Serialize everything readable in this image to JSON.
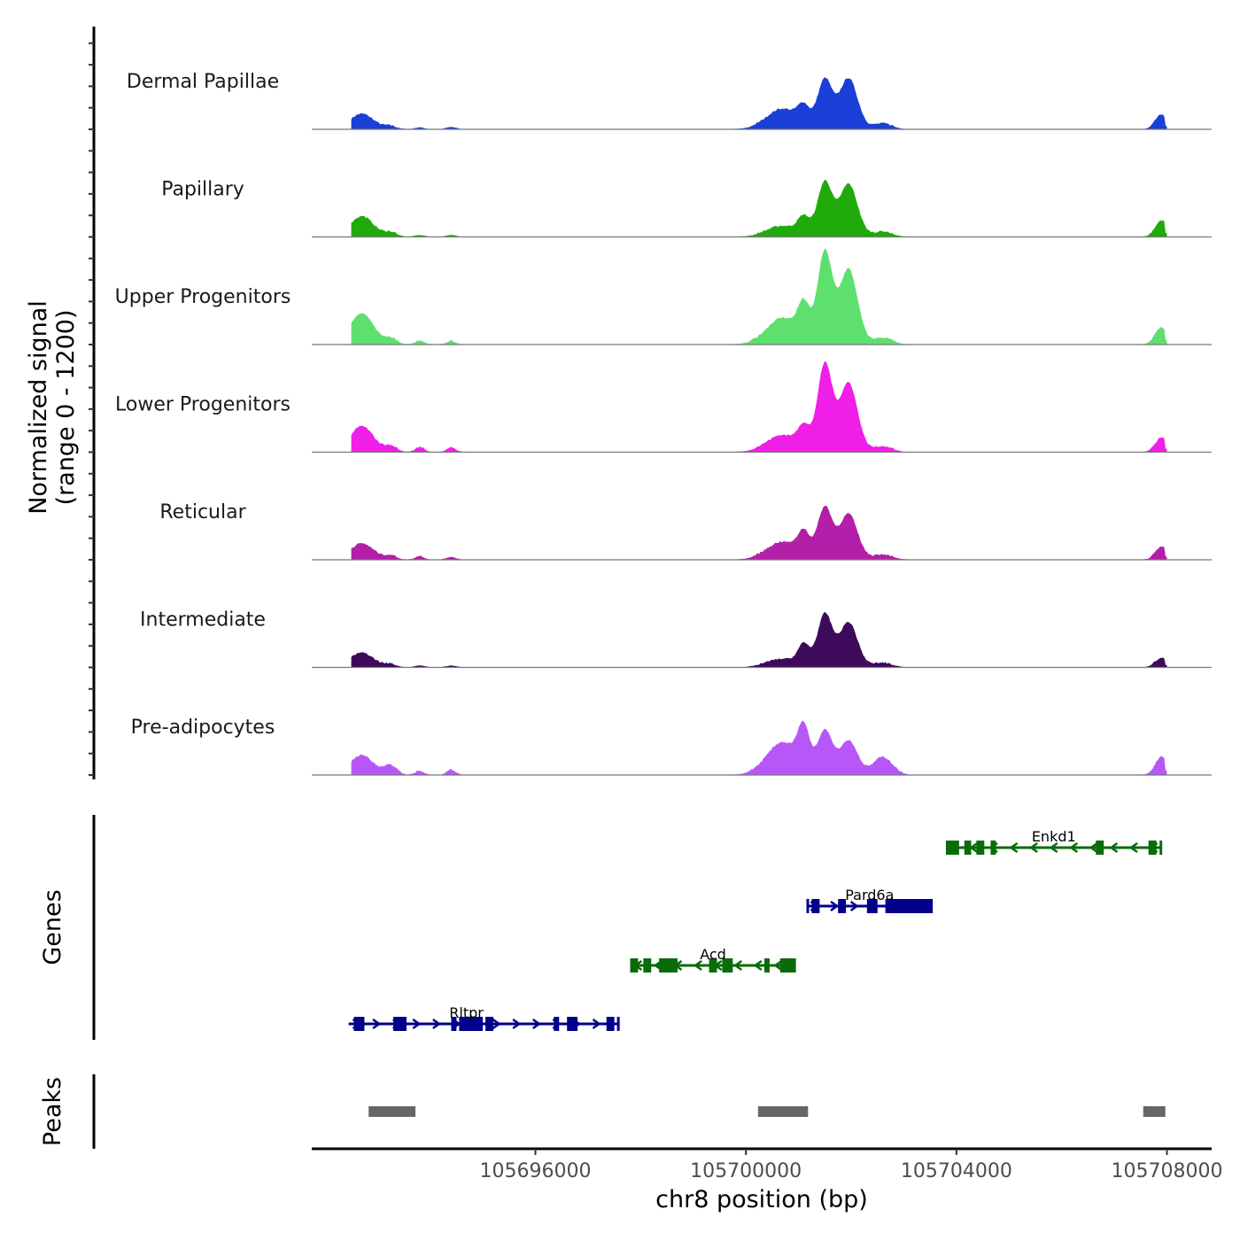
{
  "chart_data": {
    "type": "area",
    "title": "",
    "xlabel": "chr8 position (bp)",
    "ylabel_line1": "Normalized signal",
    "ylabel_line2": "(range 0 - 1200)",
    "ylim": [
      0,
      1200
    ],
    "xlim": [
      105691750,
      105708850
    ],
    "x_ticks": [
      105696000,
      105700000,
      105704000,
      105708000
    ],
    "x_tick_labels": [
      "105696000",
      "105700000",
      "105704000",
      "105708000"
    ],
    "grid": false,
    "peak_profile": {
      "comment": "signal peaks shared by all tracks: centers (bp), relative width (bp), relative heights per track",
      "centers": [
        105692700,
        105693250,
        105693800,
        105694400,
        105700700,
        105701100,
        105701500,
        105701950,
        105702600,
        105707900
      ],
      "widths": [
        220,
        120,
        90,
        90,
        300,
        110,
        140,
        170,
        180,
        120
      ]
    },
    "tracks": [
      {
        "name": "Dermal Papillae",
        "color": "#1a3fd8",
        "peak_values": [
          170,
          30,
          20,
          25,
          230,
          200,
          560,
          580,
          60,
          160
        ]
      },
      {
        "name": "Papillary",
        "color": "#1fab0a",
        "peak_values": [
          230,
          45,
          20,
          20,
          120,
          190,
          620,
          600,
          55,
          180
        ]
      },
      {
        "name": "Upper Progenitors",
        "color": "#5ee06e",
        "peak_values": [
          350,
          60,
          40,
          35,
          300,
          380,
          1050,
          860,
          70,
          190
        ]
      },
      {
        "name": "Lower Progenitors",
        "color": "#f01fe8",
        "peak_values": [
          290,
          60,
          50,
          45,
          190,
          240,
          1000,
          790,
          60,
          160
        ]
      },
      {
        "name": "Reticular",
        "color": "#b31fa8",
        "peak_values": [
          180,
          40,
          35,
          30,
          200,
          260,
          590,
          520,
          55,
          140
        ]
      },
      {
        "name": "Intermediate",
        "color": "#3d0a5c",
        "peak_values": [
          160,
          30,
          20,
          20,
          90,
          230,
          600,
          510,
          45,
          100
        ]
      },
      {
        "name": "Pre-adipocytes",
        "color": "#b857f7",
        "peak_values": [
          220,
          100,
          40,
          50,
          370,
          450,
          500,
          390,
          200,
          200
        ]
      }
    ],
    "genes_track_label": "Genes",
    "genes": [
      {
        "name": "Enkd1",
        "start": 105703800,
        "end": 105707900,
        "strand": "-",
        "color": "#0a6b0a",
        "exons": [
          [
            105703800,
            105704050
          ],
          [
            105704150,
            105704280
          ],
          [
            105704380,
            105704530
          ],
          [
            105704650,
            105704750
          ],
          [
            105706650,
            105706800
          ],
          [
            105707650,
            105707800
          ],
          [
            105707860,
            105707900
          ]
        ]
      },
      {
        "name": "Pard6a",
        "start": 105701150,
        "end": 105703550,
        "strand": "+",
        "color": "#00008b",
        "exons": [
          [
            105701150,
            105701200
          ],
          [
            105701250,
            105701400
          ],
          [
            105701750,
            105701900
          ],
          [
            105702300,
            105702500
          ],
          [
            105702650,
            105703550
          ]
        ]
      },
      {
        "name": "Acd",
        "start": 105697800,
        "end": 105700950,
        "strand": "-",
        "color": "#0a6b0a",
        "exons": [
          [
            105697800,
            105697950
          ],
          [
            105698050,
            105698200
          ],
          [
            105698350,
            105698700
          ],
          [
            105699300,
            105699450
          ],
          [
            105699550,
            105699750
          ],
          [
            105700350,
            105700450
          ],
          [
            105700650,
            105700950
          ]
        ]
      },
      {
        "name": "Rltpr",
        "start": 105692450,
        "end": 105697600,
        "strand": "+",
        "color": "#00008b",
        "exons": [
          [
            105692550,
            105692750
          ],
          [
            105693300,
            105693550
          ],
          [
            105694400,
            105694500
          ],
          [
            105694550,
            105695000
          ],
          [
            105695050,
            105695200
          ],
          [
            105696350,
            105696450
          ],
          [
            105696600,
            105696800
          ],
          [
            105697350,
            105697500
          ],
          [
            105697550,
            105697600
          ]
        ]
      }
    ],
    "peaks_track_label": "Peaks",
    "peaks": [
      {
        "start": 105692830,
        "end": 105693720,
        "color": "#666666"
      },
      {
        "start": 105700230,
        "end": 105701180,
        "color": "#666666"
      },
      {
        "start": 105707550,
        "end": 105707970,
        "color": "#666666"
      }
    ]
  }
}
